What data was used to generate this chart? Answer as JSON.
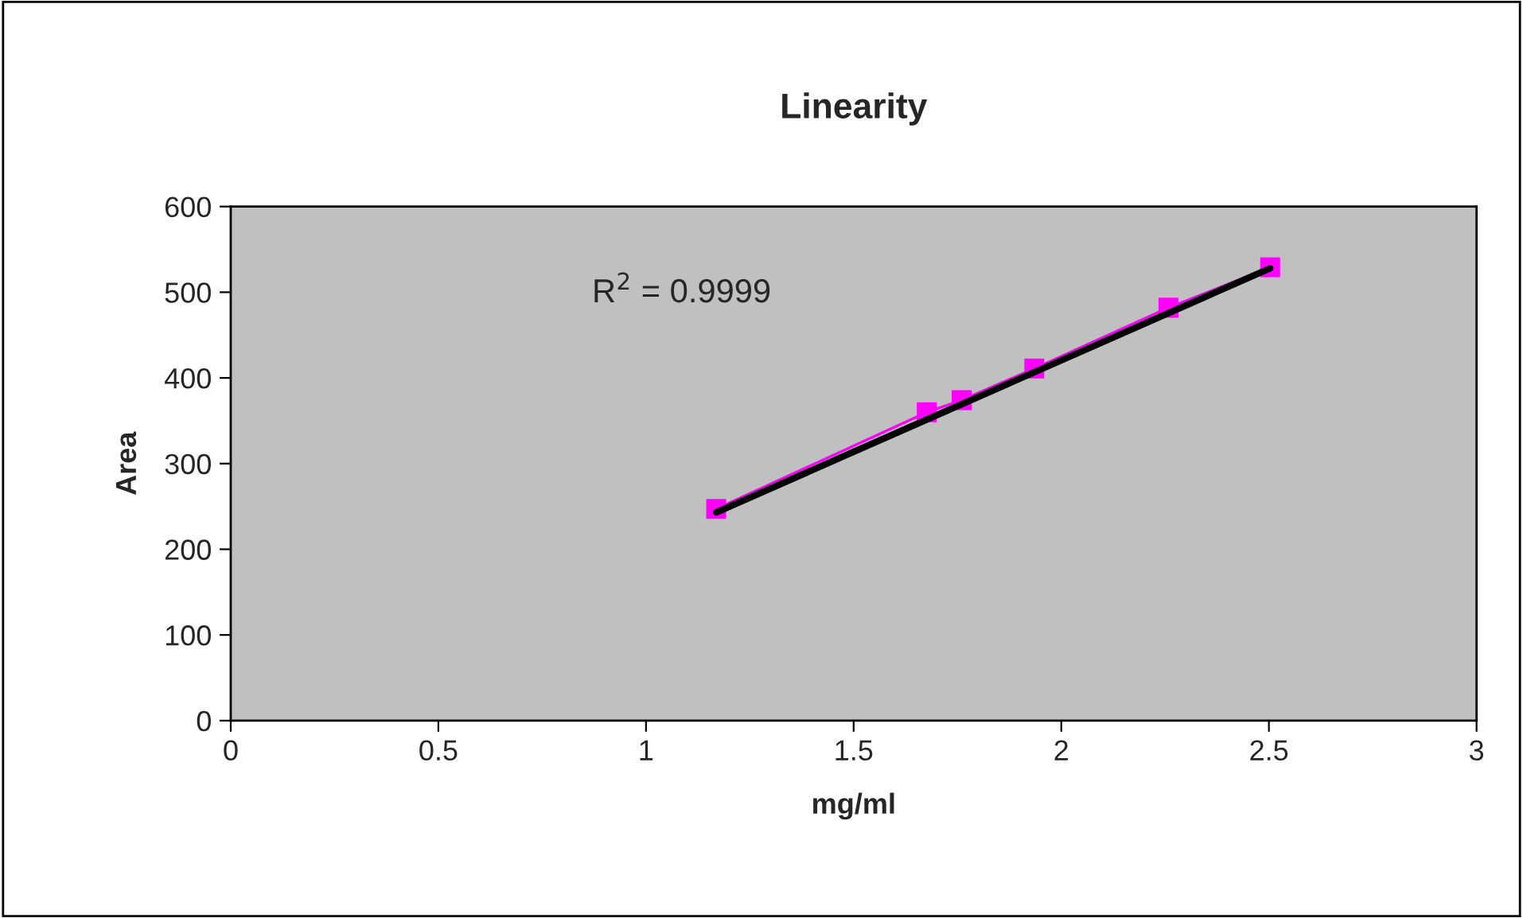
{
  "chart_data": {
    "type": "line",
    "title": "Linearity",
    "xlabel": "mg/ml",
    "ylabel": "Area",
    "xlim": [
      0,
      3
    ],
    "xticks": [
      0,
      0.5,
      1,
      1.5,
      2,
      2.5,
      3
    ],
    "ylim": [
      0,
      600
    ],
    "yticks": [
      0,
      100,
      200,
      300,
      400,
      500,
      600
    ],
    "grid": false,
    "marker": "square",
    "line_style": "solid",
    "series": [
      {
        "color": "#ff00ff",
        "x": [
          1.169,
          1.676,
          1.76,
          1.935,
          2.258,
          2.503
        ],
        "values": [
          247,
          360,
          374,
          411,
          482,
          529
        ]
      },
      {
        "type": "line",
        "color": "#000000",
        "marker": "none",
        "x": [
          1.169,
          2.503
        ],
        "values": [
          243,
          528
        ]
      }
    ],
    "annotations": [
      "R$^{2}$ = 0.9999"
    ]
  }
}
